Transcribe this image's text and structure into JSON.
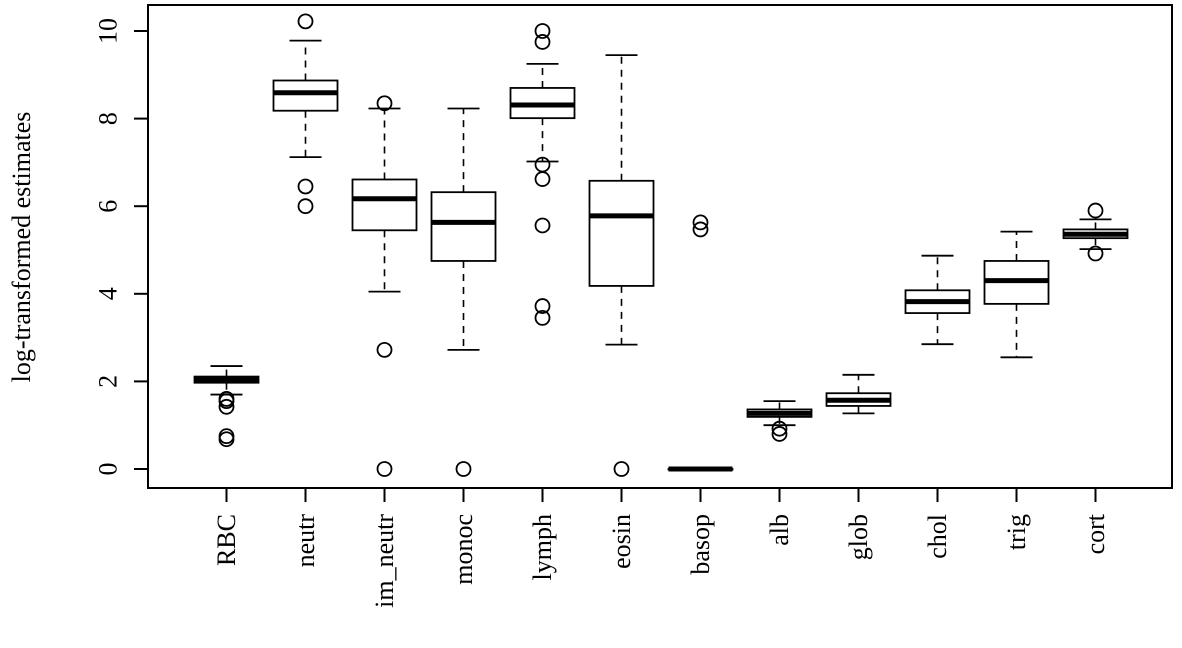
{
  "chart_data": {
    "type": "boxplot",
    "ylabel": "log-transformed estimates",
    "ylim": [
      -0.4,
      10.7
    ],
    "yticks": [
      0,
      2,
      4,
      6,
      8,
      10
    ],
    "grid": false,
    "categories": [
      "RBC",
      "neutr",
      "im_neutr",
      "monoc",
      "lymph",
      "eosin",
      "basop",
      "alb",
      "glob",
      "chol",
      "trig",
      "cort"
    ],
    "boxes": [
      {
        "category": "RBC",
        "whisker_low": 1.7,
        "q1": 1.97,
        "median": 2.04,
        "q3": 2.11,
        "whisker_high": 2.35,
        "outliers": [
          1.6,
          1.55,
          1.42,
          0.75,
          0.68
        ]
      },
      {
        "category": "neutr",
        "whisker_low": 7.12,
        "q1": 8.18,
        "median": 8.59,
        "q3": 8.87,
        "whisker_high": 9.78,
        "outliers": [
          10.22,
          6.45,
          6.0
        ]
      },
      {
        "category": "im_neutr",
        "whisker_low": 4.05,
        "q1": 5.45,
        "median": 6.17,
        "q3": 6.61,
        "whisker_high": 8.23,
        "outliers": [
          8.35,
          2.72,
          0.0
        ]
      },
      {
        "category": "monoc",
        "whisker_low": 2.72,
        "q1": 4.75,
        "median": 5.63,
        "q3": 6.32,
        "whisker_high": 8.23,
        "outliers": [
          0.0
        ]
      },
      {
        "category": "lymph",
        "whisker_low": 7.02,
        "q1": 8.01,
        "median": 8.31,
        "q3": 8.7,
        "whisker_high": 9.25,
        "outliers": [
          10.0,
          9.75,
          6.95,
          6.62,
          5.56,
          3.72,
          3.45
        ]
      },
      {
        "category": "eosin",
        "whisker_low": 2.84,
        "q1": 4.18,
        "median": 5.78,
        "q3": 6.58,
        "whisker_high": 9.45,
        "outliers": [
          0.0
        ]
      },
      {
        "category": "basop",
        "whisker_low": 0.0,
        "q1": 0.0,
        "median": 0.0,
        "q3": 0.0,
        "whisker_high": 0.0,
        "outliers": [
          5.63,
          5.47
        ]
      },
      {
        "category": "alb",
        "whisker_low": 1.0,
        "q1": 1.19,
        "median": 1.27,
        "q3": 1.36,
        "whisker_high": 1.55,
        "outliers": [
          0.92,
          0.8
        ]
      },
      {
        "category": "glob",
        "whisker_low": 1.27,
        "q1": 1.44,
        "median": 1.57,
        "q3": 1.73,
        "whisker_high": 2.15,
        "outliers": []
      },
      {
        "category": "chol",
        "whisker_low": 2.85,
        "q1": 3.56,
        "median": 3.82,
        "q3": 4.08,
        "whisker_high": 4.87,
        "outliers": []
      },
      {
        "category": "trig",
        "whisker_low": 2.55,
        "q1": 3.77,
        "median": 4.3,
        "q3": 4.75,
        "whisker_high": 5.42,
        "outliers": []
      },
      {
        "category": "cort",
        "whisker_low": 5.02,
        "q1": 5.27,
        "median": 5.36,
        "q3": 5.47,
        "whisker_high": 5.7,
        "outliers": [
          5.9,
          4.92
        ]
      }
    ]
  }
}
